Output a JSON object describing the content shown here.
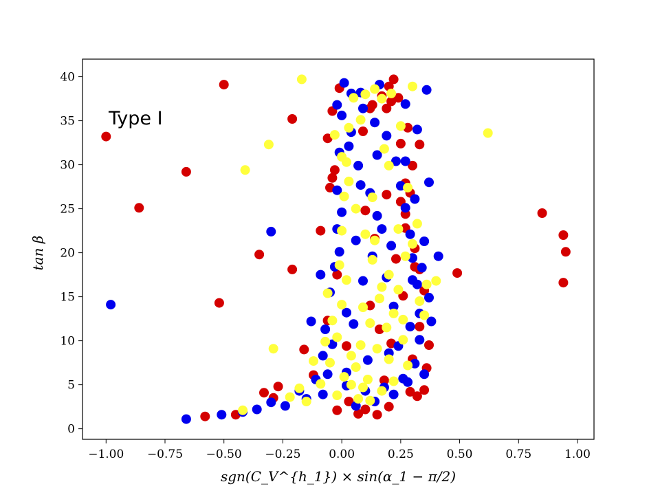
{
  "chart_data": {
    "type": "scatter",
    "title": "",
    "xlabel": "sgn(C_V^{h_1}) × sin(α_1 − π/2)",
    "ylabel": "tan β",
    "xlim": [
      -1.1,
      1.07
    ],
    "ylim": [
      -1.2,
      42.0
    ],
    "xticks": [
      -1.0,
      -0.75,
      -0.5,
      -0.25,
      0.0,
      0.25,
      0.5,
      0.75,
      1.0
    ],
    "xtick_labels": [
      "−1.00",
      "−0.75",
      "−0.50",
      "−0.25",
      "0.00",
      "0.25",
      "0.50",
      "0.75",
      "1.00"
    ],
    "yticks": [
      0,
      5,
      10,
      15,
      20,
      25,
      30,
      35,
      40
    ],
    "ytick_labels": [
      "0",
      "5",
      "10",
      "15",
      "20",
      "25",
      "30",
      "35",
      "40"
    ],
    "annotations": [
      {
        "text": "Type I",
        "x": -0.99,
        "y": 35.5
      }
    ],
    "colors": {
      "red": "#d40000",
      "blue": "#0000ee",
      "yellow": "#ffff3c"
    },
    "series": [
      {
        "name": "red",
        "color": "#d40000",
        "points": [
          [
            -1.0,
            33.2
          ],
          [
            -0.86,
            25.1
          ],
          [
            -0.66,
            29.2
          ],
          [
            -0.5,
            39.1
          ],
          [
            -0.52,
            14.3
          ],
          [
            -0.58,
            1.4
          ],
          [
            -0.35,
            19.8
          ],
          [
            -0.21,
            35.2
          ],
          [
            -0.21,
            18.1
          ],
          [
            -0.16,
            9.0
          ],
          [
            -0.29,
            3.5
          ],
          [
            -0.33,
            4.1
          ],
          [
            -0.05,
            27.4
          ],
          [
            -0.04,
            28.5
          ],
          [
            -0.03,
            29.4
          ],
          [
            -0.04,
            36.1
          ],
          [
            -0.01,
            38.7
          ],
          [
            -0.06,
            33.0
          ],
          [
            -0.02,
            2.1
          ],
          [
            0.03,
            3.1
          ],
          [
            0.12,
            36.4
          ],
          [
            0.13,
            36.8
          ],
          [
            0.17,
            37.8
          ],
          [
            0.2,
            38.9
          ],
          [
            0.21,
            37.2
          ],
          [
            0.22,
            39.7
          ],
          [
            0.24,
            37.6
          ],
          [
            0.25,
            32.4
          ],
          [
            0.27,
            27.9
          ],
          [
            0.33,
            32.3
          ],
          [
            0.27,
            24.4
          ],
          [
            0.27,
            22.8
          ],
          [
            0.31,
            18.4
          ],
          [
            0.35,
            15.7
          ],
          [
            0.37,
            9.5
          ],
          [
            0.36,
            6.9
          ],
          [
            0.35,
            4.4
          ],
          [
            0.29,
            4.2
          ],
          [
            0.2,
            2.5
          ],
          [
            0.1,
            2.2
          ],
          [
            0.07,
            1.7
          ],
          [
            0.15,
            1.6
          ],
          [
            0.19,
            36.4
          ],
          [
            0.3,
            7.9
          ],
          [
            0.33,
            18.1
          ],
          [
            0.49,
            17.7
          ],
          [
            0.85,
            24.5
          ],
          [
            0.94,
            22.0
          ],
          [
            0.95,
            20.1
          ],
          [
            0.94,
            16.6
          ],
          [
            -0.27,
            4.8
          ],
          [
            0.3,
            29.9
          ],
          [
            0.25,
            25.8
          ],
          [
            0.31,
            20.5
          ],
          [
            0.33,
            11.6
          ],
          [
            0.32,
            3.7
          ],
          [
            -0.45,
            1.6
          ],
          [
            -0.12,
            6.1
          ],
          [
            0.18,
            5.5
          ],
          [
            0.12,
            14.0
          ],
          [
            0.05,
            37.8
          ],
          [
            0.09,
            33.8
          ],
          [
            -0.09,
            22.5
          ],
          [
            -0.06,
            12.3
          ],
          [
            0.21,
            9.7
          ],
          [
            0.26,
            15.1
          ],
          [
            0.14,
            21.6
          ],
          [
            0.16,
            11.3
          ],
          [
            0.23,
            19.3
          ],
          [
            0.29,
            26.8
          ],
          [
            0.1,
            24.8
          ],
          [
            0.19,
            26.6
          ],
          [
            -0.02,
            17.5
          ],
          [
            0.02,
            9.4
          ],
          [
            0.28,
            34.2
          ]
        ]
      },
      {
        "name": "blue",
        "color": "#0000ee",
        "points": [
          [
            -0.98,
            14.1
          ],
          [
            -0.66,
            1.1
          ],
          [
            -0.51,
            1.6
          ],
          [
            -0.3,
            22.4
          ],
          [
            -0.42,
            1.9
          ],
          [
            -0.36,
            2.2
          ],
          [
            -0.24,
            2.6
          ],
          [
            -0.15,
            3.4
          ],
          [
            -0.11,
            5.6
          ],
          [
            -0.08,
            8.3
          ],
          [
            -0.07,
            11.3
          ],
          [
            -0.05,
            15.5
          ],
          [
            -0.03,
            18.4
          ],
          [
            -0.02,
            22.7
          ],
          [
            -0.02,
            27.1
          ],
          [
            -0.01,
            31.4
          ],
          [
            0.0,
            35.6
          ],
          [
            0.01,
            39.3
          ],
          [
            0.04,
            38.1
          ],
          [
            0.09,
            36.4
          ],
          [
            0.14,
            34.8
          ],
          [
            0.19,
            33.3
          ],
          [
            0.23,
            30.4
          ],
          [
            0.25,
            27.6
          ],
          [
            0.27,
            25.1
          ],
          [
            0.29,
            22.1
          ],
          [
            0.3,
            19.4
          ],
          [
            0.32,
            16.4
          ],
          [
            0.33,
            13.1
          ],
          [
            0.33,
            10.1
          ],
          [
            0.31,
            7.4
          ],
          [
            0.28,
            5.3
          ],
          [
            0.22,
            3.9
          ],
          [
            0.14,
            3.1
          ],
          [
            0.06,
            2.6
          ],
          [
            0.36,
            38.5
          ],
          [
            0.32,
            34.0
          ],
          [
            0.27,
            30.4
          ],
          [
            0.37,
            28.0
          ],
          [
            0.35,
            21.3
          ],
          [
            0.34,
            18.3
          ],
          [
            0.37,
            14.9
          ],
          [
            0.38,
            12.2
          ],
          [
            0.41,
            19.6
          ],
          [
            0.26,
            5.7
          ],
          [
            0.18,
            4.7
          ],
          [
            0.1,
            4.3
          ],
          [
            0.02,
            4.9
          ],
          [
            -0.06,
            6.2
          ],
          [
            -0.04,
            9.6
          ],
          [
            0.02,
            13.2
          ],
          [
            0.09,
            16.8
          ],
          [
            0.13,
            19.6
          ],
          [
            0.17,
            22.7
          ],
          [
            0.12,
            26.8
          ],
          [
            0.07,
            29.9
          ],
          [
            0.04,
            33.7
          ],
          [
            0.08,
            38.2
          ],
          [
            0.15,
            31.1
          ],
          [
            -0.09,
            17.5
          ],
          [
            -0.13,
            12.2
          ],
          [
            -0.18,
            4.3
          ],
          [
            -0.3,
            3.0
          ],
          [
            0.35,
            6.2
          ],
          [
            0.29,
            11.6
          ],
          [
            0.06,
            21.4
          ],
          [
            0.0,
            24.6
          ],
          [
            0.19,
            17.2
          ],
          [
            0.22,
            13.9
          ],
          [
            0.24,
            9.4
          ],
          [
            0.11,
            7.8
          ],
          [
            -0.02,
            36.8
          ],
          [
            0.16,
            39.1
          ],
          [
            0.02,
            6.4
          ],
          [
            -0.08,
            3.9
          ],
          [
            0.27,
            36.9
          ],
          [
            0.31,
            26.1
          ],
          [
            0.3,
            16.9
          ],
          [
            0.2,
            8.6
          ],
          [
            0.05,
            11.9
          ],
          [
            -0.01,
            20.1
          ],
          [
            0.08,
            27.7
          ],
          [
            0.03,
            32.1
          ],
          [
            0.15,
            24.2
          ],
          [
            0.21,
            20.8
          ]
        ]
      },
      {
        "name": "yellow",
        "color": "#ffff3c",
        "points": [
          [
            -0.17,
            39.7
          ],
          [
            -0.31,
            32.3
          ],
          [
            -0.41,
            29.4
          ],
          [
            -0.29,
            9.1
          ],
          [
            -0.18,
            4.6
          ],
          [
            -0.15,
            3.1
          ],
          [
            -0.09,
            5.1
          ],
          [
            -0.05,
            7.5
          ],
          [
            -0.02,
            10.4
          ],
          [
            0.0,
            14.1
          ],
          [
            -0.01,
            18.6
          ],
          [
            0.0,
            22.5
          ],
          [
            0.01,
            26.4
          ],
          [
            0.02,
            30.3
          ],
          [
            0.03,
            34.2
          ],
          [
            0.05,
            37.6
          ],
          [
            0.1,
            38.0
          ],
          [
            0.14,
            38.6
          ],
          [
            0.17,
            37.5
          ],
          [
            0.21,
            38.1
          ],
          [
            0.25,
            34.4
          ],
          [
            0.3,
            38.9
          ],
          [
            0.2,
            29.9
          ],
          [
            0.28,
            27.4
          ],
          [
            0.24,
            22.7
          ],
          [
            0.32,
            23.3
          ],
          [
            0.36,
            16.4
          ],
          [
            0.4,
            16.8
          ],
          [
            0.33,
            14.5
          ],
          [
            0.35,
            12.9
          ],
          [
            0.27,
            19.6
          ],
          [
            0.2,
            17.5
          ],
          [
            0.16,
            14.8
          ],
          [
            0.12,
            12.0
          ],
          [
            0.08,
            9.5
          ],
          [
            0.06,
            7.0
          ],
          [
            0.04,
            5.0
          ],
          [
            0.07,
            3.4
          ],
          [
            0.12,
            3.2
          ],
          [
            0.17,
            4.3
          ],
          [
            0.22,
            5.4
          ],
          [
            0.28,
            7.2
          ],
          [
            0.26,
            10.1
          ],
          [
            0.22,
            13.1
          ],
          [
            0.17,
            16.1
          ],
          [
            0.13,
            19.2
          ],
          [
            0.1,
            22.1
          ],
          [
            0.06,
            25.0
          ],
          [
            0.03,
            28.1
          ],
          [
            -0.03,
            33.4
          ],
          [
            -0.06,
            15.4
          ],
          [
            -0.12,
            7.7
          ],
          [
            -0.22,
            3.6
          ],
          [
            -0.42,
            2.1
          ],
          [
            0.62,
            33.6
          ],
          [
            0.09,
            4.7
          ],
          [
            0.15,
            9.1
          ],
          [
            0.19,
            11.5
          ],
          [
            0.24,
            15.8
          ],
          [
            0.02,
            16.9
          ],
          [
            -0.04,
            12.3
          ],
          [
            -0.07,
            9.9
          ],
          [
            0.01,
            5.9
          ],
          [
            0.13,
            26.3
          ],
          [
            0.18,
            31.8
          ],
          [
            0.08,
            35.1
          ],
          [
            0.0,
            30.9
          ],
          [
            0.14,
            21.4
          ],
          [
            0.3,
            21.0
          ],
          [
            0.11,
            5.6
          ],
          [
            -0.02,
            3.8
          ],
          [
            0.04,
            8.3
          ],
          [
            0.2,
            7.9
          ],
          [
            0.26,
            12.4
          ],
          [
            0.09,
            13.8
          ]
        ]
      }
    ]
  }
}
